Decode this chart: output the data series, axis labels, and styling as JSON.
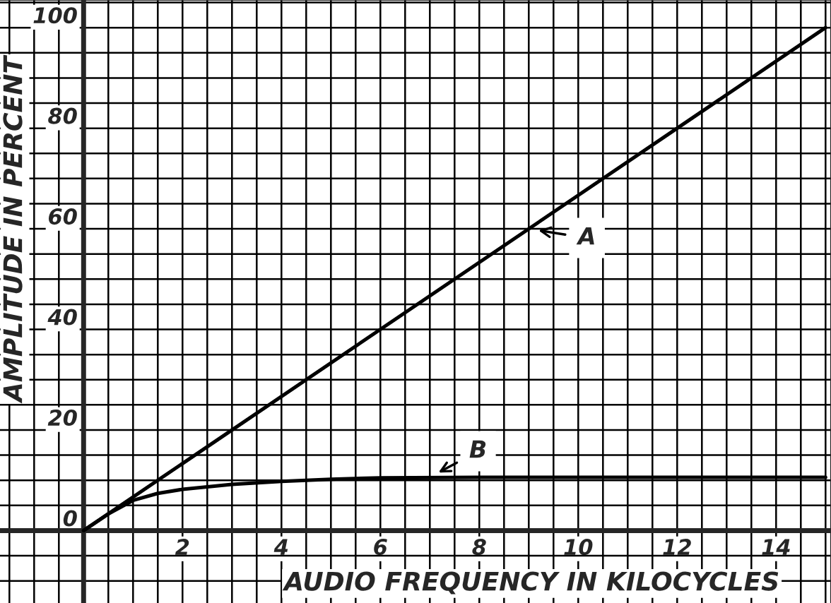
{
  "chart_data": {
    "type": "line",
    "xlabel": "AUDIO FREQUENCY IN KILOCYCLES",
    "ylabel": "AMPLITUDE IN PERCENT",
    "x": [
      0,
      0.5,
      1,
      1.5,
      2,
      3,
      4,
      5,
      6,
      8,
      10,
      12,
      15
    ],
    "series": [
      {
        "color": "#000000",
        "x": [
          0,
          15
        ],
        "values": [
          0,
          100
        ]
      },
      {
        "color": "#000000",
        "values": [
          0,
          3.3,
          6,
          7.4,
          8.2,
          9.2,
          9.8,
          10.2,
          10.5,
          10.6,
          10.6,
          10.6,
          10.6
        ]
      }
    ],
    "annotations": [
      {
        "text": "A",
        "x": 9,
        "y": 60
      },
      {
        "text": "B",
        "x": 7,
        "y": 10.6
      }
    ],
    "xlim": [
      -1.69,
      15.11
    ],
    "ylim": [
      -14.4,
      105.5
    ],
    "xticks": [
      {
        "value": 0,
        "label": null
      },
      2,
      4,
      6,
      8,
      10,
      12,
      14
    ],
    "yticks": [
      0,
      20,
      40,
      60,
      80,
      100
    ],
    "grid": true,
    "marker": "none",
    "line_style": "solid"
  }
}
